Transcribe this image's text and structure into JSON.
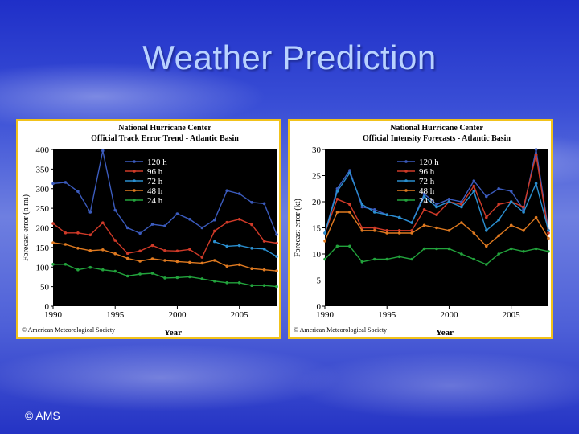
{
  "slide": {
    "title": "Weather Prediction",
    "copyright": "© AMS"
  },
  "chart_data": [
    {
      "type": "line",
      "title": "National Hurricane Center",
      "subtitle": "Official Track Error Trend - Atlantic Basin",
      "xlabel": "Year",
      "ylabel": "Forecast error (n mi)",
      "source": "© American Meteorological Society",
      "xlim": [
        1990,
        2008
      ],
      "ylim": [
        0,
        400
      ],
      "xticks": [
        1990,
        1995,
        2000,
        2005
      ],
      "yticks": [
        0,
        50,
        100,
        150,
        200,
        250,
        300,
        350,
        400
      ],
      "legend_position": "top-center",
      "grid": false,
      "x": [
        1990,
        1991,
        1992,
        1993,
        1994,
        1995,
        1996,
        1997,
        1998,
        1999,
        2000,
        2001,
        2002,
        2003,
        2004,
        2005,
        2006,
        2007,
        2008
      ],
      "series": [
        {
          "name": "120 h",
          "color": "#3b5bbd",
          "values": [
            313,
            316,
            293,
            240,
            397,
            245,
            200,
            186,
            209,
            205,
            236,
            222,
            200,
            220,
            295,
            287,
            265,
            262,
            183
          ]
        },
        {
          "name": "96 h",
          "color": "#d03a28",
          "values": [
            211,
            187,
            187,
            182,
            213,
            168,
            135,
            141,
            155,
            142,
            141,
            145,
            125,
            192,
            214,
            222,
            208,
            166,
            161
          ]
        },
        {
          "name": "72 h",
          "color": "#2a8fd0",
          "values": [
            null,
            null,
            null,
            null,
            null,
            null,
            null,
            null,
            null,
            null,
            null,
            null,
            null,
            165,
            153,
            155,
            148,
            146,
            127
          ]
        },
        {
          "name": "48 h",
          "color": "#e07a20",
          "values": [
            162,
            158,
            148,
            142,
            144,
            134,
            122,
            115,
            121,
            117,
            114,
            112,
            110,
            117,
            102,
            106,
            96,
            93,
            90
          ]
        },
        {
          "name": "24 h",
          "color": "#22a33c",
          "values": [
            107,
            107,
            93,
            99,
            93,
            89,
            77,
            82,
            84,
            72,
            73,
            75,
            70,
            64,
            60,
            60,
            53,
            53,
            50
          ]
        }
      ]
    },
    {
      "type": "line",
      "title": "National Hurricane Center",
      "subtitle": "Official Intensity Forecasts - Atlantic Basin",
      "xlabel": "Year",
      "ylabel": "Forecast error (kt)",
      "source": "© American Meteorological Society",
      "xlim": [
        1990,
        2008
      ],
      "ylim": [
        0,
        30
      ],
      "xticks": [
        1990,
        1995,
        2000,
        2005
      ],
      "yticks": [
        0,
        5,
        10,
        15,
        20,
        25,
        30
      ],
      "legend_position": "top-center",
      "grid": false,
      "x": [
        1990,
        1991,
        1992,
        1993,
        1994,
        1995,
        1996,
        1997,
        1998,
        1999,
        2000,
        2001,
        2002,
        2003,
        2004,
        2005,
        2006,
        2007,
        2008
      ],
      "series": [
        {
          "name": "120 h",
          "color": "#3b5bbd",
          "values": [
            14,
            22.5,
            26,
            19,
            18.5,
            17.5,
            17,
            16,
            21.5,
            19.5,
            20.5,
            20,
            24,
            21,
            22.5,
            22,
            18.5,
            30.5,
            14.5
          ]
        },
        {
          "name": "96 h",
          "color": "#d03a28",
          "values": [
            14,
            20.5,
            19.5,
            15,
            15,
            14.5,
            14.5,
            14.5,
            18.5,
            17.5,
            20,
            19.5,
            23,
            17,
            19.5,
            20,
            19,
            29,
            14
          ]
        },
        {
          "name": "72 h",
          "color": "#2a8fd0",
          "values": [
            14,
            22,
            25.5,
            19.5,
            18,
            17.5,
            17,
            16,
            21,
            19,
            20,
            19,
            22,
            14.5,
            16.5,
            20,
            18,
            23.5,
            14.5
          ]
        },
        {
          "name": "48 h",
          "color": "#e07a20",
          "values": [
            12.5,
            18,
            18,
            14.5,
            14.5,
            14,
            14,
            14,
            15.5,
            15,
            14.5,
            16,
            14,
            11.5,
            13.5,
            15.5,
            14.5,
            17,
            13
          ]
        },
        {
          "name": "24 h",
          "color": "#22a33c",
          "values": [
            9,
            11.5,
            11.5,
            8.5,
            9,
            9,
            9.5,
            9,
            11,
            11,
            11,
            10,
            9,
            8,
            10,
            11,
            10.5,
            11,
            10.5
          ]
        }
      ]
    }
  ]
}
